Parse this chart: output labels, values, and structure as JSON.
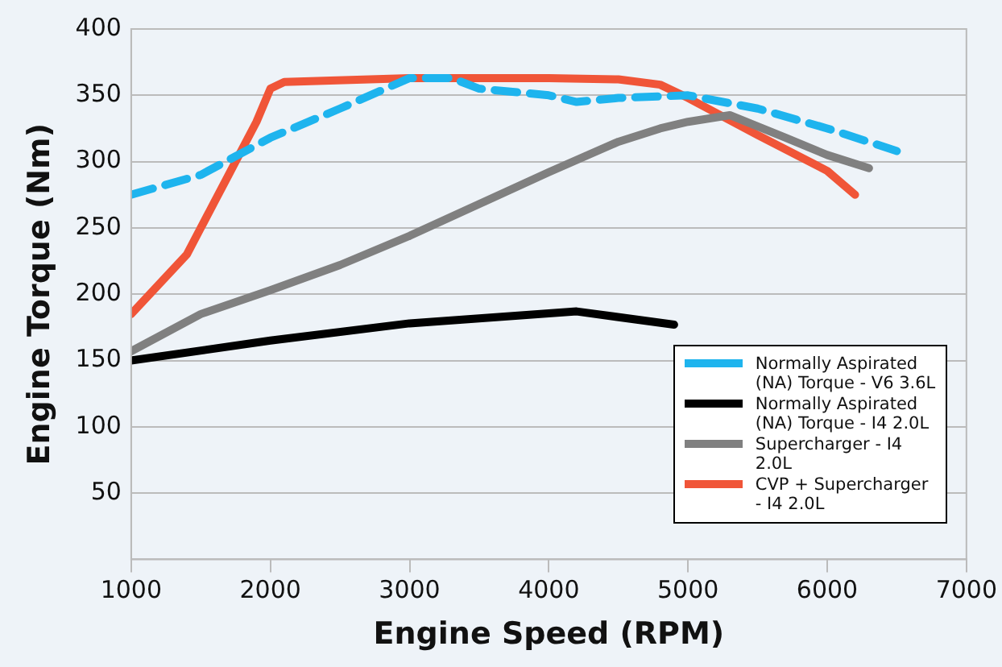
{
  "chart_data": {
    "type": "line",
    "xlabel": "Engine Speed (RPM)",
    "ylabel": "Engine Torque (Nm)",
    "xlim": [
      1000,
      7000
    ],
    "xticks": [
      1000,
      2000,
      3000,
      4000,
      5000,
      6000,
      7000
    ],
    "ylim": [
      0,
      400
    ],
    "yticks": [
      50,
      100,
      150,
      200,
      250,
      300,
      350,
      400
    ],
    "grid": "y",
    "legend": "bottom right",
    "series": [
      {
        "name": "Normally Aspirated (NA)  Torque - V6  3.6L",
        "color": "#1eb4ee",
        "line_style": "dashed",
        "x": [
          1000,
          1500,
          2000,
          2500,
          3000,
          3300,
          3500,
          4000,
          4200,
          4500,
          5000,
          5500,
          6000,
          6500
        ],
        "values": [
          275,
          290,
          318,
          340,
          363,
          363,
          355,
          350,
          345,
          348,
          350,
          340,
          325,
          308
        ]
      },
      {
        "name": "Normally Aspirated (NA)  Torque - I4 2.0L",
        "color": "#000000",
        "x": [
          1000,
          2000,
          3000,
          4200,
          4900
        ],
        "values": [
          150,
          165,
          178,
          187,
          177
        ]
      },
      {
        "name": "Supercharger - I4 2.0L",
        "color": "#808080",
        "x": [
          1000,
          1500,
          2000,
          2500,
          3000,
          3500,
          4000,
          4500,
          4800,
          5000,
          5300,
          5700,
          6000,
          6300
        ],
        "values": [
          157,
          185,
          203,
          222,
          244,
          268,
          292,
          315,
          325,
          330,
          335,
          318,
          305,
          295
        ]
      },
      {
        "name": "CVP + Supercharger - I4 2.0L",
        "color": "#f05538",
        "x": [
          1000,
          1400,
          1700,
          1900,
          2000,
          2100,
          3000,
          3500,
          4000,
          4500,
          4800,
          5000,
          5500,
          6000,
          6200
        ],
        "values": [
          185,
          230,
          290,
          330,
          355,
          360,
          363,
          363,
          363,
          362,
          358,
          348,
          320,
          293,
          275
        ]
      }
    ]
  }
}
